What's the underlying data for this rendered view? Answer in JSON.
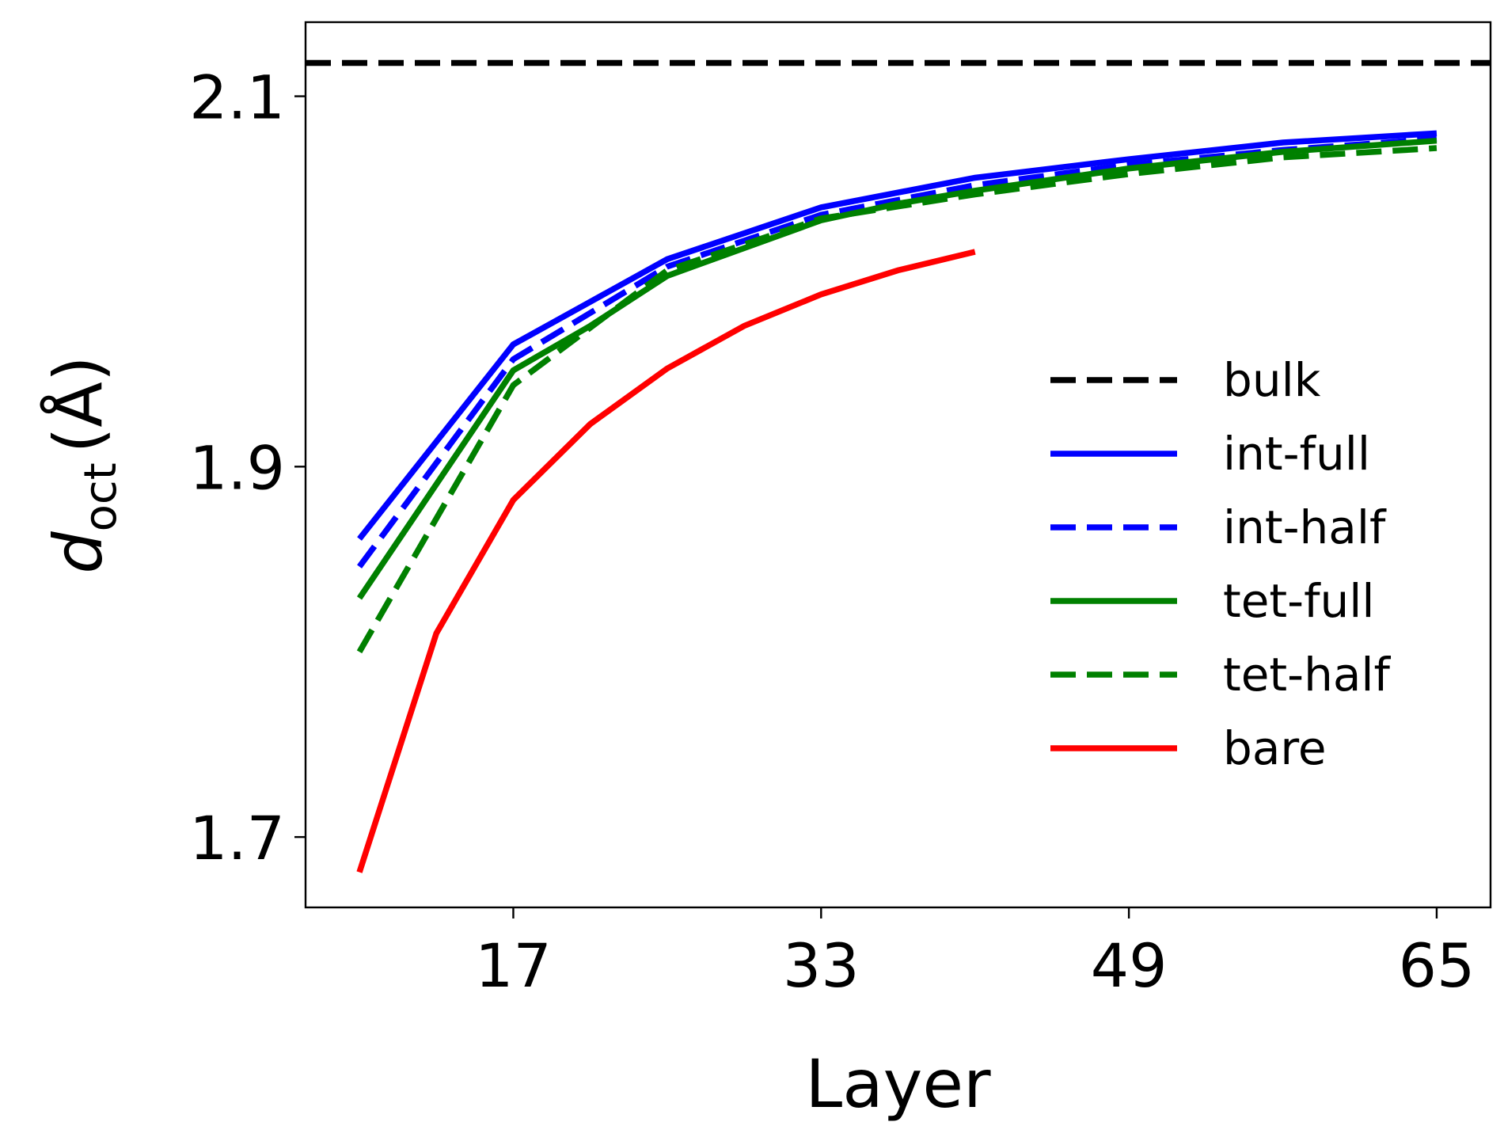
{
  "chart_data": {
    "type": "line",
    "title": "",
    "xlabel": "Layer",
    "ylabel": {
      "symbol": "d",
      "subscript": "oct",
      "unit": "(Å)"
    },
    "xlim": [
      6.2,
      67.8
    ],
    "ylim": [
      1.662,
      2.14
    ],
    "xticks": [
      17,
      33,
      49,
      65
    ],
    "xtick_labels": [
      "17",
      "33",
      "49",
      "65"
    ],
    "yticks": [
      1.7,
      1.9,
      2.1
    ],
    "ytick_labels": [
      "1.7",
      "1.9",
      "2.1"
    ],
    "grid": false,
    "legend_position": "lower-right",
    "reference_lines": [
      {
        "name": "bulk",
        "y": 2.118,
        "color": "#000000",
        "dashed": true
      }
    ],
    "series": [
      {
        "name": "int-full",
        "color": "#0000ff",
        "dashed": false,
        "x": [
          9,
          17,
          25,
          33,
          41,
          49,
          57,
          65
        ],
        "y": [
          1.861,
          1.966,
          2.012,
          2.04,
          2.056,
          2.066,
          2.075,
          2.08
        ]
      },
      {
        "name": "int-half",
        "color": "#0000ff",
        "dashed": true,
        "x": [
          9,
          17,
          25,
          33,
          41,
          49,
          57,
          65
        ],
        "y": [
          1.846,
          1.958,
          2.008,
          2.036,
          2.052,
          2.063,
          2.071,
          2.077
        ]
      },
      {
        "name": "tet-full",
        "color": "#008000",
        "dashed": false,
        "x": [
          9,
          17,
          21,
          25,
          29,
          33,
          37,
          41,
          49,
          57,
          65
        ],
        "y": [
          1.829,
          1.952,
          1.976,
          2.003,
          2.018,
          2.033,
          2.042,
          2.049,
          2.061,
          2.07,
          2.076
        ]
      },
      {
        "name": "tet-half",
        "color": "#008000",
        "dashed": true,
        "x": [
          9,
          17,
          25,
          33,
          41,
          49,
          57,
          65
        ],
        "y": [
          1.8,
          1.944,
          2.006,
          2.034,
          2.047,
          2.058,
          2.067,
          2.072
        ]
      },
      {
        "name": "bare",
        "color": "#ff0000",
        "dashed": false,
        "x": [
          9,
          13,
          17,
          21,
          25,
          29,
          33,
          37,
          41
        ],
        "y": [
          1.681,
          1.81,
          1.882,
          1.923,
          1.953,
          1.976,
          1.993,
          2.006,
          2.016
        ]
      }
    ]
  }
}
